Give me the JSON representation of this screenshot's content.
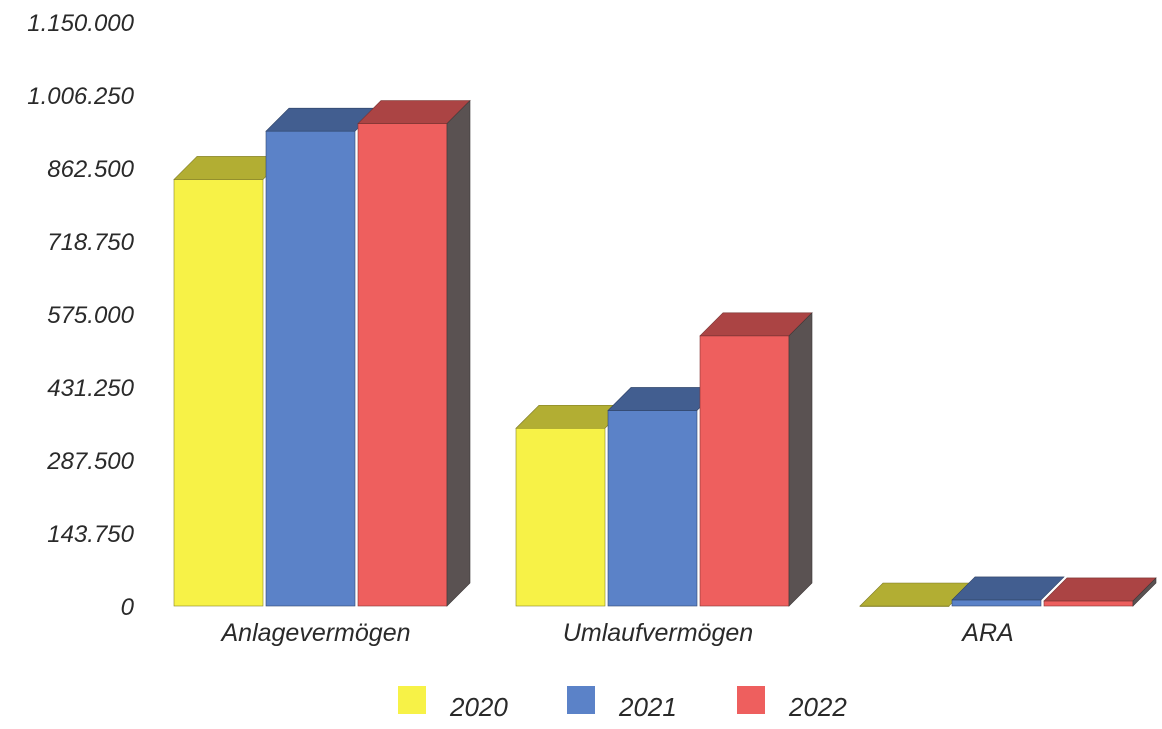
{
  "chart_data": {
    "type": "bar",
    "style": "3d-clustered",
    "categories": [
      "Anlagevermögen",
      "Umlaufvermögen",
      "ARA"
    ],
    "series": [
      {
        "name": "2020",
        "color": "#F7F247",
        "values": [
          840000,
          350000,
          0
        ]
      },
      {
        "name": "2021",
        "color": "#5B82C8",
        "values": [
          935000,
          385000,
          12000
        ]
      },
      {
        "name": "2022",
        "color": "#EE5F5E",
        "values": [
          950000,
          532000,
          10000
        ]
      }
    ],
    "y_ticks": [
      "0",
      "143.750",
      "287.500",
      "431.250",
      "575.000",
      "718.750",
      "862.500",
      "1.006.250",
      "1.150.000"
    ],
    "ylim": [
      0,
      1150000
    ],
    "grid": false,
    "legend_position": "bottom"
  }
}
